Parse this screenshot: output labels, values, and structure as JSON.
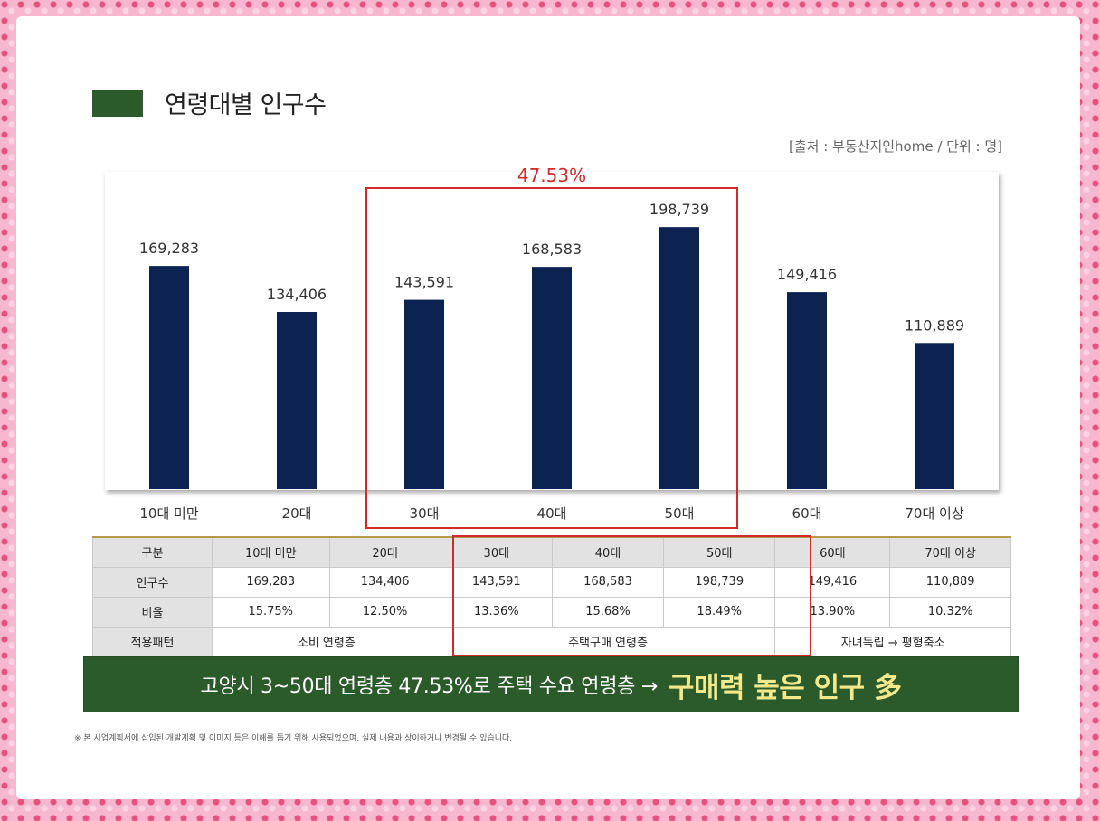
{
  "header": {
    "title": "연령대별 인구수",
    "source": "[출처 : 부동산지인home / 단위 : 명]"
  },
  "chart_data": {
    "type": "bar",
    "categories": [
      "10대 미만",
      "20대",
      "30대",
      "40대",
      "50대",
      "60대",
      "70대 이상"
    ],
    "values": [
      169283,
      134406,
      143591,
      168583,
      198739,
      149416,
      110889
    ],
    "value_labels": [
      "169,283",
      "134,406",
      "143,591",
      "168,583",
      "198,739",
      "149,416",
      "110,889"
    ],
    "ylim": [
      0,
      240000
    ],
    "grid": false,
    "bar_color": "#0c2251",
    "highlight": {
      "categories": [
        "30대",
        "40대",
        "50대"
      ],
      "label": "47.53%",
      "color": "#d12a2a"
    }
  },
  "table": {
    "header_label": "구분",
    "columns": [
      "10대 미만",
      "20대",
      "30대",
      "40대",
      "50대",
      "60대",
      "70대 이상"
    ],
    "population": {
      "label": "인구수",
      "values": [
        "169,283",
        "134,406",
        "143,591",
        "168,583",
        "198,739",
        "149,416",
        "110,889"
      ]
    },
    "ratio": {
      "label": "비율",
      "values": [
        "15.75%",
        "12.50%",
        "13.36%",
        "15.68%",
        "18.49%",
        "13.90%",
        "10.32%"
      ]
    },
    "pattern": {
      "label": "적용패턴",
      "groups": [
        "소비 연령층",
        "주택구매 연령층",
        "자녀독립 → 평형축소"
      ]
    }
  },
  "banner": {
    "white_text": "고양시 3~50대 연령층 47.53%로 주택 수요 연령층 →",
    "yellow_text": "구매력 높은 인구 多"
  },
  "footnote": "※ 본 사업계획서에 삽입된 개발계획 및 이미지 등은 이해를 돕기 위해 사용되었으며, 실제 내용과 상이하거나 변경될 수 있습니다.",
  "colors": {
    "frame": "#f7b8cf",
    "accent_green": "#2b5a2b",
    "highlight_red": "#d12a2a",
    "banner_yellow": "#f3e98a"
  }
}
